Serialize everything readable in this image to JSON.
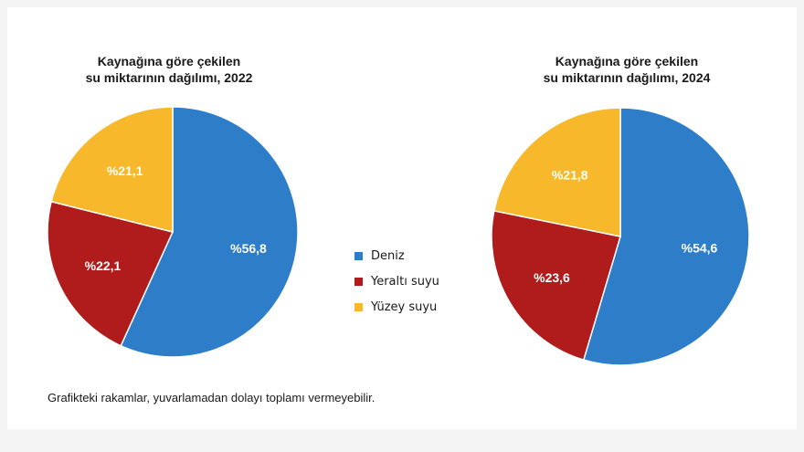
{
  "chart_data": [
    {
      "type": "pie",
      "title_line1": "Kaynağına göre çekilen",
      "title_line2": "su miktarının dağılımı, 2022",
      "slices": [
        {
          "name": "Deniz",
          "value": 56.8,
          "label": "%56,8",
          "color": "#2e7dc8"
        },
        {
          "name": "Yeraltı suyu",
          "value": 22.1,
          "label": "%22,1",
          "color": "#b01c1c"
        },
        {
          "name": "Yüzey suyu",
          "value": 21.1,
          "label": "%21,1",
          "color": "#f7b82b"
        }
      ]
    },
    {
      "type": "pie",
      "title_line1": "Kaynağına göre çekilen",
      "title_line2": "su miktarının dağılımı, 2024",
      "slices": [
        {
          "name": "Deniz",
          "value": 54.6,
          "label": "%54,6",
          "color": "#2e7dc8"
        },
        {
          "name": "Yeraltı suyu",
          "value": 23.6,
          "label": "%23,6",
          "color": "#b01c1c"
        },
        {
          "name": "Yüzey suyu",
          "value": 21.8,
          "label": "%21,8",
          "color": "#f7b82b"
        }
      ]
    }
  ],
  "legend": [
    {
      "name": "Deniz",
      "color": "#2e7dc8"
    },
    {
      "name": "Yeraltı suyu",
      "color": "#b01c1c"
    },
    {
      "name": "Yüzey suyu",
      "color": "#f7b82b"
    }
  ],
  "footnote": "Grafikteki rakamlar, yuvarlamadan dolayı toplamı vermeyebilir."
}
